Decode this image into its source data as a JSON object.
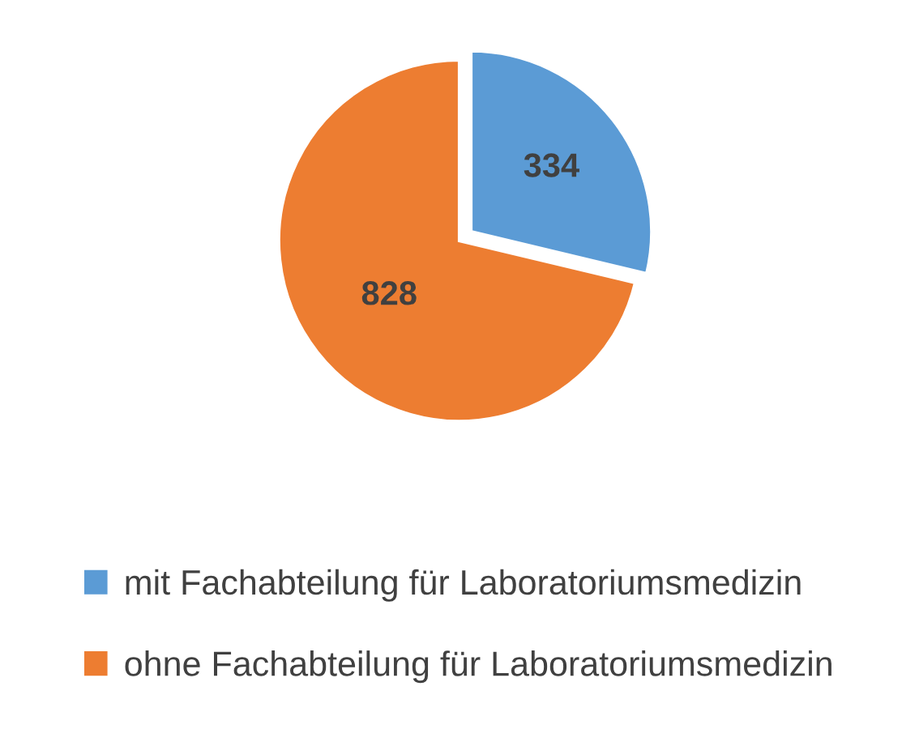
{
  "chart_data": {
    "type": "pie",
    "categories": [
      "mit Fachabteilung für Laboratoriumsmedizin",
      "ohne Fachabteilung für Laboratoriumsmedizin"
    ],
    "values": [
      334,
      828
    ],
    "colors": [
      "#5b9bd5",
      "#ed7d31"
    ],
    "data_labels": true,
    "legend": "bottom"
  }
}
